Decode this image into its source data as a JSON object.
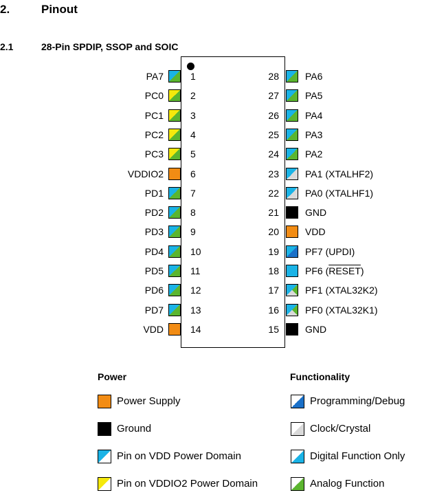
{
  "section": {
    "number": "2.",
    "title": "Pinout"
  },
  "subsection": {
    "number": "2.1",
    "title": "28-Pin SPDIP, SSOP and SOIC"
  },
  "colors": {
    "vdd_domain": "#1ab3e6",
    "vddio2_domain": "#f5e90c",
    "analog": "#5bb52f",
    "power": "#f28c14",
    "ground": "#000000",
    "prog_debug": "#1a70c8",
    "clock": "#d9d9d9"
  },
  "left_pins": [
    {
      "num": "1",
      "name": "PA7",
      "style": "vdd-analog"
    },
    {
      "num": "2",
      "name": "PC0",
      "style": "vddio2-analog"
    },
    {
      "num": "3",
      "name": "PC1",
      "style": "vddio2-analog"
    },
    {
      "num": "4",
      "name": "PC2",
      "style": "vddio2-analog"
    },
    {
      "num": "5",
      "name": "PC3",
      "style": "vddio2-analog"
    },
    {
      "num": "6",
      "name": "VDDIO2",
      "style": "power"
    },
    {
      "num": "7",
      "name": "PD1",
      "style": "vdd-analog"
    },
    {
      "num": "8",
      "name": "PD2",
      "style": "vdd-analog"
    },
    {
      "num": "9",
      "name": "PD3",
      "style": "vdd-analog"
    },
    {
      "num": "10",
      "name": "PD4",
      "style": "vdd-analog"
    },
    {
      "num": "11",
      "name": "PD5",
      "style": "vdd-analog"
    },
    {
      "num": "12",
      "name": "PD6",
      "style": "vdd-analog"
    },
    {
      "num": "13",
      "name": "PD7",
      "style": "vdd-analog"
    },
    {
      "num": "14",
      "name": "VDD",
      "style": "power"
    }
  ],
  "right_pins": [
    {
      "num": "28",
      "name": "PA6",
      "style": "vdd-analog"
    },
    {
      "num": "27",
      "name": "PA5",
      "style": "vdd-analog"
    },
    {
      "num": "26",
      "name": "PA4",
      "style": "vdd-analog"
    },
    {
      "num": "25",
      "name": "PA3",
      "style": "vdd-analog"
    },
    {
      "num": "24",
      "name": "PA2",
      "style": "vdd-analog"
    },
    {
      "num": "23",
      "name": "PA1 (XTALHF2)",
      "style": "vdd-clock"
    },
    {
      "num": "22",
      "name": "PA0 (XTALHF1)",
      "style": "vdd-clock"
    },
    {
      "num": "21",
      "name": "GND",
      "style": "ground"
    },
    {
      "num": "20",
      "name": "VDD",
      "style": "power"
    },
    {
      "num": "19",
      "name": "PF7 (UPDI)",
      "style": "vdd-prog"
    },
    {
      "num": "18",
      "name": "PF6 (",
      "name_over": "RESET",
      "name_tail": ")",
      "style": "vdd-digital"
    },
    {
      "num": "17",
      "name": "PF1 (XTAL32K2)",
      "style": "vdd-analog-clock"
    },
    {
      "num": "16",
      "name": "PF0 (XTAL32K1)",
      "style": "vdd-analog-clock"
    },
    {
      "num": "15",
      "name": "GND",
      "style": "ground"
    }
  ],
  "legend": {
    "power_heading": "Power",
    "functionality_heading": "Functionality",
    "power_items": [
      {
        "label": "Power Supply",
        "style": "power"
      },
      {
        "label": "Ground",
        "style": "ground"
      },
      {
        "label": "Pin on VDD Power Domain",
        "style": "vdd-plain"
      },
      {
        "label": "Pin on VDDIO2 Power Domain",
        "style": "vddio2-plain"
      }
    ],
    "function_items": [
      {
        "label": "Programming/Debug",
        "style": "func-prog"
      },
      {
        "label": "Clock/Crystal",
        "style": "func-clock"
      },
      {
        "label": "Digital Function Only",
        "style": "func-digital"
      },
      {
        "label": "Analog Function",
        "style": "func-analog"
      }
    ]
  }
}
